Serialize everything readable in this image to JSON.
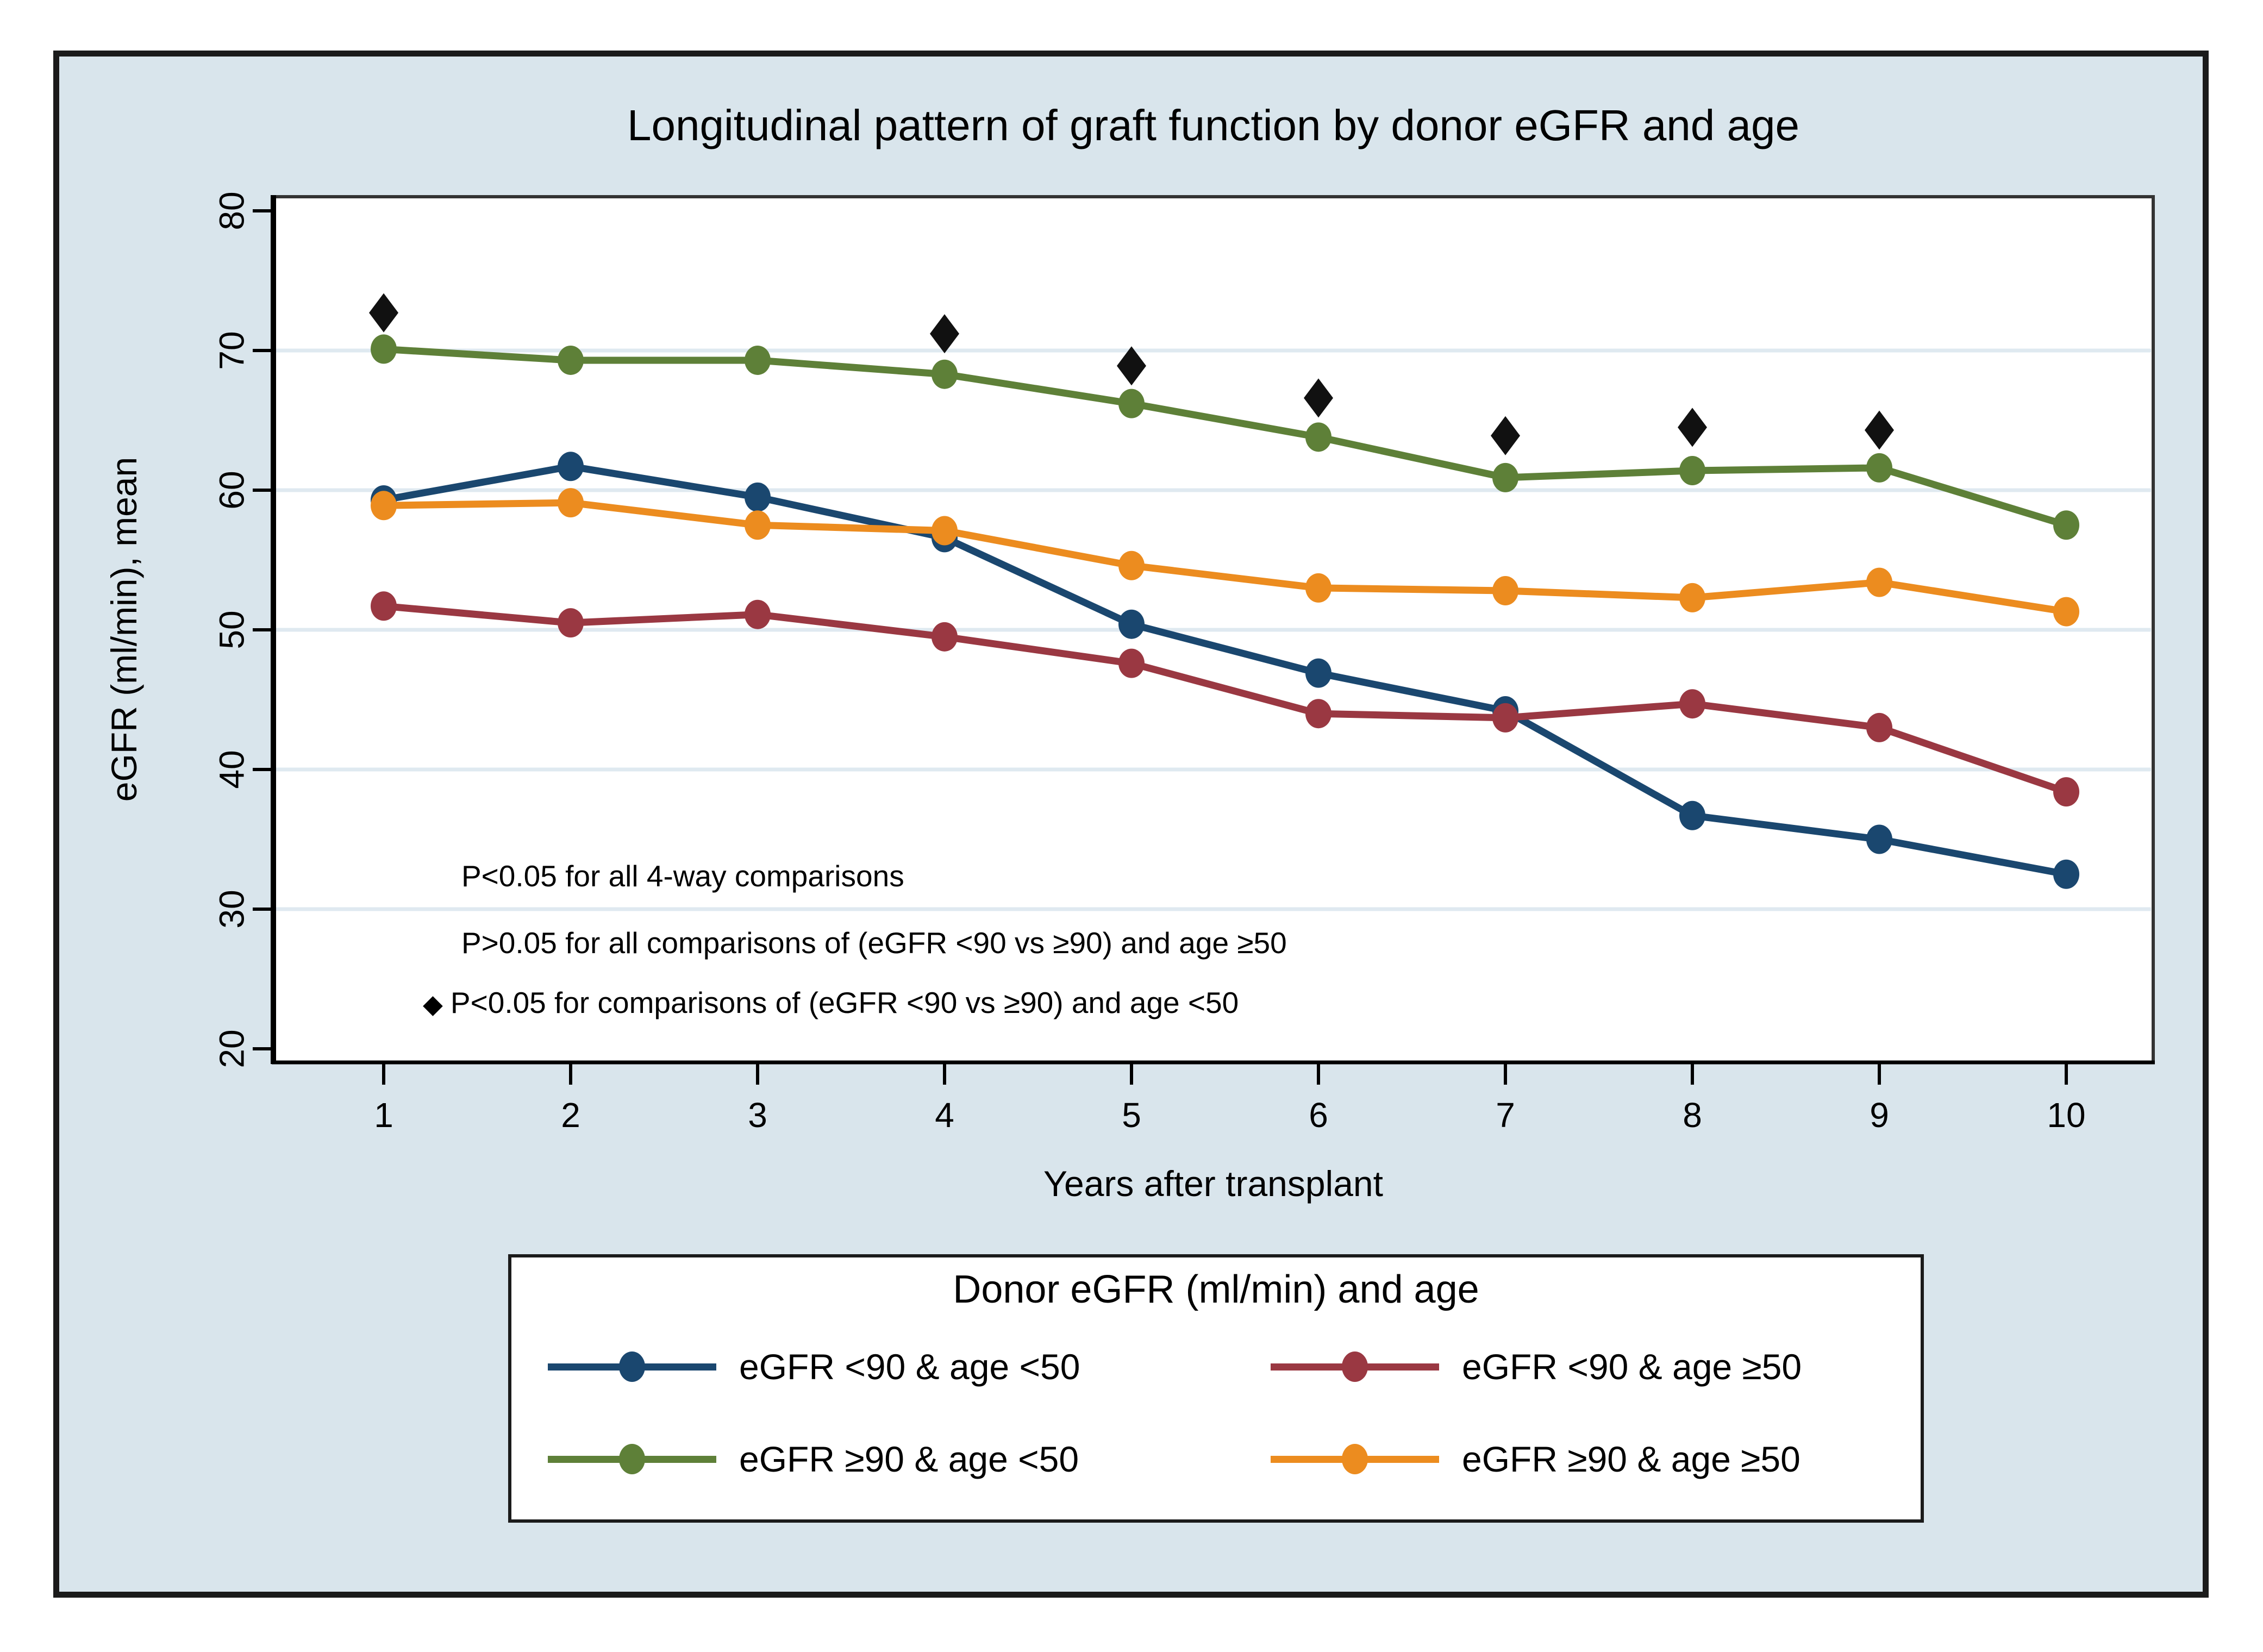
{
  "figure": {
    "background_color": "#d9e5ec",
    "plot_background_color": "#ffffff",
    "gridline_color": "#dfe9f0",
    "frame_color": "#1b1b1b",
    "axis_color": "#000000",
    "plot_border_color": "#333333"
  },
  "chart_data": {
    "type": "line",
    "title": "Longitudinal pattern of graft function by donor eGFR and age",
    "xlabel": "Years after transplant",
    "ylabel": "eGFR (ml/min), mean",
    "x": [
      1,
      2,
      3,
      4,
      5,
      6,
      7,
      8,
      9,
      10
    ],
    "xticks": [
      1,
      2,
      3,
      4,
      5,
      6,
      7,
      8,
      9,
      10
    ],
    "yticks": [
      20,
      30,
      40,
      50,
      60,
      70,
      80
    ],
    "ylim": [
      20,
      80
    ],
    "grid": "horizontal",
    "legend_position": "bottom",
    "series": [
      {
        "name": "eGFR <90 & age <50",
        "color": "#1a476f",
        "values": [
          59.3,
          61.7,
          59.5,
          56.6,
          50.4,
          46.9,
          44.2,
          36.7,
          35.0,
          32.5
        ]
      },
      {
        "name": "eGFR <90 & age ≥50",
        "color": "#9a3842",
        "values": [
          51.7,
          50.5,
          51.1,
          49.5,
          47.6,
          44.0,
          43.7,
          44.7,
          43.0,
          38.4
        ]
      },
      {
        "name": "eGFR ≥90 & age <50",
        "color": "#5e8038",
        "values": [
          70.1,
          69.3,
          69.3,
          68.3,
          66.2,
          63.8,
          60.9,
          61.4,
          61.6,
          57.5
        ]
      },
      {
        "name": "eGFR ≥90 & age ≥50",
        "color": "#ec8c1f",
        "values": [
          58.9,
          59.1,
          57.5,
          57.1,
          54.6,
          53.0,
          52.8,
          52.3,
          53.4,
          51.3
        ]
      }
    ],
    "significance_markers": {
      "symbol": "◆",
      "color": "#111111",
      "points": [
        {
          "x": 1,
          "y": 72.7
        },
        {
          "x": 4,
          "y": 71.2
        },
        {
          "x": 5,
          "y": 68.9
        },
        {
          "x": 6,
          "y": 66.6
        },
        {
          "x": 7,
          "y": 63.9
        },
        {
          "x": 8,
          "y": 64.5
        },
        {
          "x": 9,
          "y": 64.3
        }
      ]
    }
  },
  "annotations": {
    "bullet": "◆",
    "line1": "P<0.05 for all 4-way comparisons",
    "line2": "P>0.05 for all comparisons of (eGFR <90 vs ≥90) and age ≥50",
    "line3": "P<0.05 for comparisons of (eGFR <90 vs ≥90) and age <50"
  },
  "legend": {
    "title": "Donor eGFR (ml/min) and age",
    "entries": [
      {
        "label": "eGFR <90 & age <50",
        "color": "#1a476f"
      },
      {
        "label": "eGFR <90 & age ≥50",
        "color": "#9a3842"
      },
      {
        "label": "eGFR ≥90 & age <50",
        "color": "#5e8038"
      },
      {
        "label": "eGFR ≥90 & age ≥50",
        "color": "#ec8c1f"
      }
    ]
  }
}
